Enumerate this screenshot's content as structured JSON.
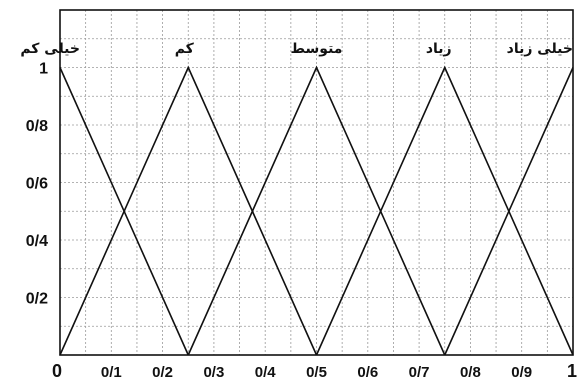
{
  "chart_data": {
    "type": "line",
    "title": "",
    "xlabel": "",
    "ylabel": "",
    "xlim": [
      0,
      1
    ],
    "ylim": [
      0,
      1
    ],
    "grid": true,
    "x_ticks": [
      "0",
      "0/1",
      "0/2",
      "0/3",
      "0/4",
      "0/5",
      "0/6",
      "0/7",
      "0/8",
      "0/9",
      "1"
    ],
    "y_ticks": [
      "0/2",
      "0/4",
      "0/6",
      "0/8",
      "1"
    ],
    "series": [
      {
        "name": "خیلی کم",
        "x": [
          0,
          0.25
        ],
        "y": [
          1,
          0
        ]
      },
      {
        "name": "کم",
        "x": [
          0,
          0.25,
          0.5
        ],
        "y": [
          0,
          1,
          0
        ]
      },
      {
        "name": "متوسط",
        "x": [
          0.25,
          0.5,
          0.75
        ],
        "y": [
          0,
          1,
          0
        ]
      },
      {
        "name": "زیاد",
        "x": [
          0.5,
          0.75,
          1
        ],
        "y": [
          0,
          1,
          0
        ]
      },
      {
        "name": "خیلی زیاد",
        "x": [
          0.75,
          1
        ],
        "y": [
          0,
          1
        ]
      }
    ]
  }
}
